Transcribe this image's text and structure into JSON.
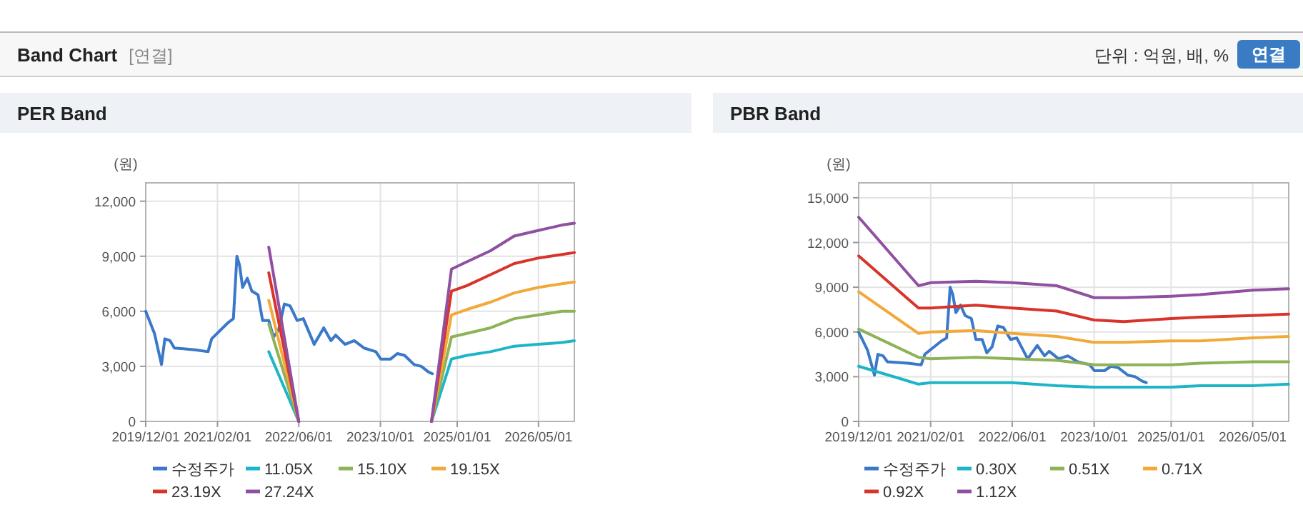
{
  "chart_data": [
    {
      "type": "line",
      "title": "PER Band",
      "ylabel": "(원)",
      "annotations": [
        "Band Chart",
        "[연결]",
        "단위 : 억원, 배, %",
        "연결"
      ],
      "xlim": [
        "2019-12-01",
        "2026-12-01"
      ],
      "xticks": [
        {
          "value": "2019-12-01",
          "label": "2019/12/01"
        },
        {
          "value": "2021-02-01",
          "label": "2021/02/01"
        },
        {
          "value": "2022-06-01",
          "label": "2022/06/01"
        },
        {
          "value": "2023-10-01",
          "label": "2023/10/01"
        },
        {
          "value": "2025-01-01",
          "label": "2025/01/01"
        },
        {
          "value": "2026-05-01",
          "label": "2026/05/01"
        }
      ],
      "ylim": [
        0,
        13000
      ],
      "yticks": [
        0,
        {
          "value": 3000,
          "label": "3,000"
        },
        {
          "value": 6000,
          "label": "6,000"
        },
        {
          "value": 9000,
          "label": "9,000"
        },
        {
          "value": 12000,
          "label": "12,000"
        }
      ],
      "grid": true,
      "legend": "bottom",
      "line_style": "solid",
      "marker": "none",
      "series": [
        {
          "name": "수정주가",
          "color": "#3a78c9",
          "x": [
            "2019-12-01",
            "2020-01-22",
            "2020-03-04",
            "2020-03-24",
            "2020-04-24",
            "2020-05-20",
            "2020-09-20",
            "2020-12-07",
            "2020-12-28",
            "2021-04-07",
            "2021-05-07",
            "2021-05-28",
            "2021-06-13",
            "2021-07-01",
            "2021-07-29",
            "2021-08-25",
            "2021-10-01",
            "2021-10-28",
            "2021-12-04",
            "2022-01-01",
            "2022-02-01",
            "2022-03-07",
            "2022-04-10",
            "2022-05-22",
            "2022-06-28",
            "2022-09-01",
            "2022-10-28",
            "2022-12-10",
            "2023-01-07",
            "2023-03-04",
            "2023-04-28",
            "2023-06-25",
            "2023-09-04",
            "2023-10-03",
            "2023-12-01",
            "2024-01-10",
            "2024-02-22",
            "2024-04-19",
            "2024-06-01",
            "2024-07-13",
            "2024-08-06"
          ],
          "values": [
            6000,
            4800,
            3100,
            4500,
            4400,
            4000,
            3900,
            3800,
            4500,
            5400,
            5600,
            9000,
            8500,
            7300,
            7800,
            7100,
            6900,
            5500,
            5500,
            4600,
            5000,
            6400,
            6300,
            5500,
            5600,
            4200,
            5100,
            4400,
            4700,
            4200,
            4400,
            4000,
            3800,
            3400,
            3400,
            3700,
            3600,
            3100,
            3000,
            2700,
            2600
          ]
        },
        {
          "name": "11.05X",
          "color": "#1fb5c8",
          "x": [
            "2024-08-01",
            "2024-11-28",
            "2025-02-28",
            "2025-07-19",
            "2025-12-07",
            "2026-04-28",
            "2026-09-18",
            "2026-12-01"
          ],
          "values": [
            0,
            3400,
            3600,
            3800,
            4100,
            4200,
            4300,
            4400
          ]
        },
        {
          "name": "15.10X",
          "color": "#8db257",
          "x": [
            "2024-08-01",
            "2024-11-28",
            "2025-02-28",
            "2025-07-19",
            "2025-12-07",
            "2026-04-28",
            "2026-09-18",
            "2026-12-01"
          ],
          "values": [
            0,
            4600,
            4800,
            5100,
            5600,
            5800,
            6000,
            6000
          ]
        },
        {
          "name": "19.15X",
          "color": "#f2a93b",
          "x": [
            "2024-08-01",
            "2024-11-28",
            "2025-02-28",
            "2025-07-19",
            "2025-12-07",
            "2026-04-28",
            "2026-09-18",
            "2026-12-01"
          ],
          "values": [
            0,
            5800,
            6100,
            6500,
            7000,
            7300,
            7500,
            7600
          ]
        },
        {
          "name": "23.19X",
          "color": "#d9342b",
          "x": [
            "2024-08-01",
            "2024-11-28",
            "2025-02-28",
            "2025-07-19",
            "2025-12-07",
            "2026-04-28",
            "2026-09-18",
            "2026-12-01"
          ],
          "values": [
            0,
            7100,
            7400,
            8000,
            8600,
            8900,
            9100,
            9200
          ]
        },
        {
          "name": "27.24X",
          "color": "#9050a0",
          "x": [
            "2024-08-01",
            "2024-11-28",
            "2025-02-28",
            "2025-07-19",
            "2025-12-07",
            "2026-04-28",
            "2026-09-18",
            "2026-12-01"
          ],
          "values": [
            0,
            8300,
            8700,
            9300,
            10100,
            10400,
            10700,
            10800
          ]
        },
        {
          "color": "#1fb5c8",
          "x": [
            "2021-12-04",
            "2022-06-01"
          ],
          "values": [
            3800,
            0
          ]
        },
        {
          "color": "#8db257",
          "x": [
            "2021-12-04",
            "2022-06-01"
          ],
          "values": [
            5300,
            0
          ]
        },
        {
          "color": "#f2a93b",
          "x": [
            "2021-12-04",
            "2022-06-01"
          ],
          "values": [
            6600,
            0
          ]
        },
        {
          "color": "#d9342b",
          "x": [
            "2021-12-04",
            "2022-06-01"
          ],
          "values": [
            8100,
            0
          ]
        },
        {
          "color": "#9050a0",
          "x": [
            "2021-12-04",
            "2022-06-01"
          ],
          "values": [
            9500,
            0
          ]
        }
      ]
    },
    {
      "type": "line",
      "title": "PBR Band",
      "ylabel": "(원)",
      "xlim": [
        "2019-12-01",
        "2026-12-01"
      ],
      "xticks": [
        {
          "value": "2019-12-01",
          "label": "2019/12/01"
        },
        {
          "value": "2021-02-01",
          "label": "2021/02/01"
        },
        {
          "value": "2022-06-01",
          "label": "2022/06/01"
        },
        {
          "value": "2023-10-01",
          "label": "2023/10/01"
        },
        {
          "value": "2025-01-01",
          "label": "2025/01/01"
        },
        {
          "value": "2026-05-01",
          "label": "2026/05/01"
        }
      ],
      "ylim": [
        0,
        16000
      ],
      "yticks": [
        0,
        {
          "value": 3000,
          "label": "3,000"
        },
        {
          "value": 6000,
          "label": "6,000"
        },
        {
          "value": 9000,
          "label": "9,000"
        },
        {
          "value": 12000,
          "label": "12,000"
        },
        {
          "value": 15000,
          "label": "15,000"
        }
      ],
      "grid": true,
      "legend": "bottom",
      "line_style": "solid",
      "marker": "none",
      "series": [
        {
          "name": "수정주가",
          "color": "#3a78c9",
          "x": [
            "2019-12-01",
            "2020-01-22",
            "2020-03-04",
            "2020-03-24",
            "2020-04-24",
            "2020-05-20",
            "2020-09-20",
            "2020-12-07",
            "2020-12-28",
            "2021-04-07",
            "2021-05-07",
            "2021-05-28",
            "2021-06-13",
            "2021-07-01",
            "2021-07-29",
            "2021-08-25",
            "2021-10-01",
            "2021-10-28",
            "2021-12-04",
            "2022-01-01",
            "2022-02-01",
            "2022-03-07",
            "2022-04-10",
            "2022-05-22",
            "2022-06-28",
            "2022-09-01",
            "2022-10-28",
            "2022-12-10",
            "2023-01-07",
            "2023-03-04",
            "2023-04-28",
            "2023-06-25",
            "2023-09-04",
            "2023-10-03",
            "2023-12-01",
            "2024-01-10",
            "2024-02-22",
            "2024-04-19",
            "2024-06-01",
            "2024-07-13",
            "2024-08-06"
          ],
          "values": [
            6000,
            4800,
            3100,
            4500,
            4400,
            4000,
            3900,
            3800,
            4500,
            5400,
            5600,
            9000,
            8500,
            7300,
            7800,
            7100,
            6900,
            5500,
            5500,
            4600,
            5000,
            6400,
            6300,
            5500,
            5600,
            4200,
            5100,
            4400,
            4700,
            4200,
            4400,
            4000,
            3800,
            3400,
            3400,
            3700,
            3600,
            3100,
            3000,
            2700,
            2600
          ]
        },
        {
          "name": "0.30X",
          "color": "#1fb5c8",
          "x": [
            "2019-12-01",
            "2020-11-21",
            "2021-02-01",
            "2021-10-28",
            "2022-06-01",
            "2023-02-22",
            "2023-10-01",
            "2024-03-25",
            "2025-01-01",
            "2025-06-22",
            "2026-05-01",
            "2026-12-01"
          ],
          "values": [
            3700,
            2500,
            2600,
            2600,
            2600,
            2400,
            2300,
            2300,
            2300,
            2400,
            2400,
            2500
          ]
        },
        {
          "name": "0.51X",
          "color": "#8db257",
          "x": [
            "2019-12-01",
            "2020-11-21",
            "2021-02-01",
            "2021-10-28",
            "2022-06-01",
            "2023-02-22",
            "2023-10-01",
            "2024-03-25",
            "2025-01-01",
            "2025-06-22",
            "2026-05-01",
            "2026-12-01"
          ],
          "values": [
            6200,
            4300,
            4200,
            4300,
            4200,
            4100,
            3800,
            3800,
            3800,
            3900,
            4000,
            4000
          ]
        },
        {
          "name": "0.71X",
          "color": "#f2a93b",
          "x": [
            "2019-12-01",
            "2020-11-21",
            "2021-02-01",
            "2021-10-28",
            "2022-06-01",
            "2023-02-22",
            "2023-10-01",
            "2024-03-25",
            "2025-01-01",
            "2025-06-22",
            "2026-05-01",
            "2026-12-01"
          ],
          "values": [
            8700,
            5900,
            6000,
            6100,
            5900,
            5700,
            5300,
            5300,
            5400,
            5400,
            5600,
            5700
          ]
        },
        {
          "name": "0.92X",
          "color": "#d9342b",
          "x": [
            "2019-12-01",
            "2020-11-21",
            "2021-02-01",
            "2021-10-28",
            "2022-06-01",
            "2023-02-22",
            "2023-10-01",
            "2024-03-25",
            "2025-01-01",
            "2025-06-22",
            "2026-05-01",
            "2026-12-01"
          ],
          "values": [
            11100,
            7600,
            7600,
            7800,
            7600,
            7400,
            6800,
            6700,
            6900,
            7000,
            7100,
            7200
          ]
        },
        {
          "name": "1.12X",
          "color": "#9050a0",
          "x": [
            "2019-12-01",
            "2020-11-21",
            "2021-02-01",
            "2021-10-28",
            "2022-06-01",
            "2023-02-22",
            "2023-10-01",
            "2024-03-25",
            "2025-01-01",
            "2025-06-22",
            "2026-05-01",
            "2026-12-01"
          ],
          "values": [
            13700,
            9100,
            9300,
            9400,
            9300,
            9100,
            8300,
            8300,
            8400,
            8500,
            8800,
            8900
          ]
        }
      ]
    }
  ]
}
